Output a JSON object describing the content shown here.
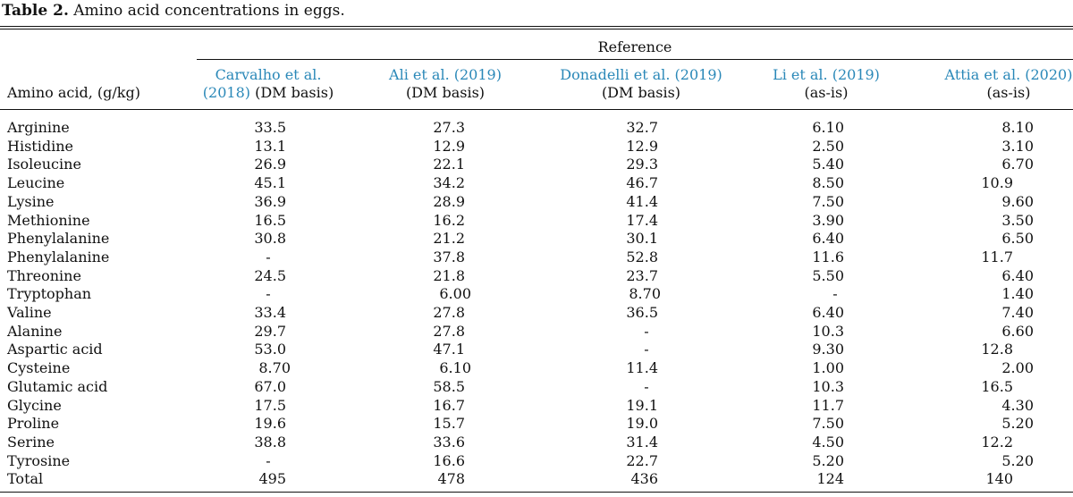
{
  "caption": {
    "label": "Table 2.",
    "text": " Amino acid concentrations in eggs."
  },
  "reference_header": "Reference",
  "row_header": "Amino acid, (g/kg)",
  "columns": [
    {
      "line1": "Carvalho et al.",
      "line2_link": "(2018)",
      "line2_rest": " (DM basis)"
    },
    {
      "line1": "Ali et al. (2019)",
      "line2_link": "",
      "line2_rest": "(DM basis)"
    },
    {
      "line1": "Donadelli et al. (2019)",
      "line2_link": "",
      "line2_rest": "(DM basis)"
    },
    {
      "line1": "Li et al. (2019)",
      "line2_link": "",
      "line2_rest": "(as-is)"
    },
    {
      "line1": "Attia et al. (2020)",
      "line2_link": "",
      "line2_rest": "(as-is)"
    }
  ],
  "rows": [
    {
      "name": "Arginine",
      "values": [
        "33.5",
        "27.3",
        "32.7",
        "6.10",
        "8.10"
      ]
    },
    {
      "name": "Histidine",
      "values": [
        "13.1",
        "12.9",
        "12.9",
        "2.50",
        "3.10"
      ]
    },
    {
      "name": "Isoleucine",
      "values": [
        "26.9",
        "22.1",
        "29.3",
        "5.40",
        "6.70"
      ]
    },
    {
      "name": "Leucine",
      "values": [
        "45.1",
        "34.2",
        "46.7",
        "8.50",
        "10.9"
      ]
    },
    {
      "name": "Lysine",
      "values": [
        "36.9",
        "28.9",
        "41.4",
        "7.50",
        "9.60"
      ]
    },
    {
      "name": "Methionine",
      "values": [
        "16.5",
        "16.2",
        "17.4",
        "3.90",
        "3.50"
      ]
    },
    {
      "name": "Phenylalanine",
      "values": [
        "30.8",
        "21.2",
        "30.1",
        "6.40",
        "6.50"
      ]
    },
    {
      "name": "Phenylalanine",
      "values": [
        "-",
        "37.8",
        "52.8",
        "11.6",
        "11.7"
      ]
    },
    {
      "name": "Threonine",
      "values": [
        "24.5",
        "21.8",
        "23.7",
        "5.50",
        "6.40"
      ]
    },
    {
      "name": "Tryptophan",
      "values": [
        "-",
        "6.00",
        "8.70",
        "-",
        "1.40"
      ]
    },
    {
      "name": "Valine",
      "values": [
        "33.4",
        "27.8",
        "36.5",
        "6.40",
        "7.40"
      ]
    },
    {
      "name": "Alanine",
      "values": [
        "29.7",
        "27.8",
        "-",
        "10.3",
        "6.60"
      ]
    },
    {
      "name": "Aspartic acid",
      "values": [
        "53.0",
        "47.1",
        "-",
        "9.30",
        "12.8"
      ]
    },
    {
      "name": "Cysteine",
      "values": [
        "8.70",
        "6.10",
        "11.4",
        "1.00",
        "2.00"
      ]
    },
    {
      "name": "Glutamic acid",
      "values": [
        "67.0",
        "58.5",
        "-",
        "10.3",
        "16.5"
      ]
    },
    {
      "name": "Glycine",
      "values": [
        "17.5",
        "16.7",
        "19.1",
        "11.7",
        "4.30"
      ]
    },
    {
      "name": "Proline",
      "values": [
        "19.6",
        "15.7",
        "19.0",
        "7.50",
        "5.20"
      ]
    },
    {
      "name": "Serine",
      "values": [
        "38.8",
        "33.6",
        "31.4",
        "4.50",
        "12.2"
      ]
    },
    {
      "name": "Tyrosine",
      "values": [
        "-",
        "16.6",
        "22.7",
        "5.20",
        "5.20"
      ]
    },
    {
      "name": "Total",
      "values": [
        "495",
        "478",
        "436",
        "124",
        "140"
      ]
    }
  ]
}
